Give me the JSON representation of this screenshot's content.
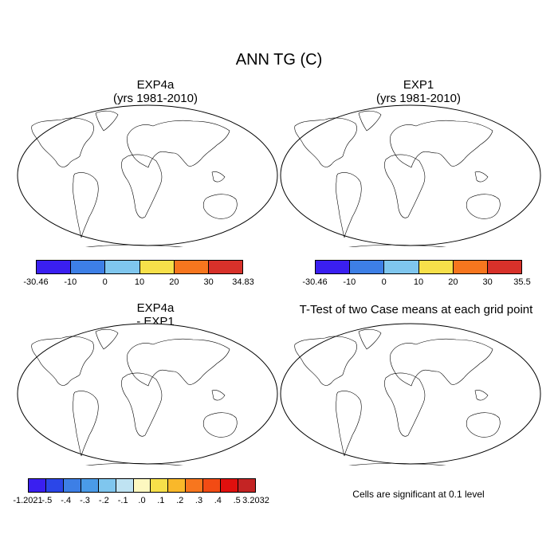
{
  "title": "ANN TG (C)",
  "panels": {
    "p1": {
      "title1": "EXP4a",
      "title2": "(yrs 1981-2010)"
    },
    "p2": {
      "title1": "EXP1",
      "title2": "(yrs 1981-2010)"
    },
    "p3": {
      "title1": "EXP4a",
      "title2": "- EXP1"
    },
    "p4": {
      "title1": "T-Test of two Case means at each grid point"
    }
  },
  "colorbars": {
    "cb1": {
      "colors": [
        "#3a1ff0",
        "#3d7fe6",
        "#7fc6ee",
        "#f7e04a",
        "#f7761e",
        "#d7312a"
      ],
      "labels": [
        "-30.46",
        "-10",
        "0",
        "10",
        "20",
        "30",
        "34.83"
      ]
    },
    "cb2": {
      "colors": [
        "#3a1ff0",
        "#3d7fe6",
        "#7fc6ee",
        "#f7e04a",
        "#f7761e",
        "#d7312a"
      ],
      "labels": [
        "-30.46",
        "-10",
        "0",
        "10",
        "20",
        "30",
        "35.5"
      ]
    },
    "cb3": {
      "colors": [
        "#3a1ff0",
        "#2b46e8",
        "#3d7fe6",
        "#4a9be8",
        "#7fc6ee",
        "#bfe3f2",
        "#fdf8c0",
        "#f7e04a",
        "#f9b82a",
        "#f7761e",
        "#f24b14",
        "#e0100e",
        "#c42424"
      ],
      "labels": [
        "-1.2021",
        "-.5",
        "-.4",
        "-.3",
        "-.2",
        "-.1",
        ".0",
        ".1",
        ".2",
        ".3",
        ".4",
        ".5",
        "3.2032"
      ]
    }
  },
  "note": "Cells are significant at 0.1 level"
}
